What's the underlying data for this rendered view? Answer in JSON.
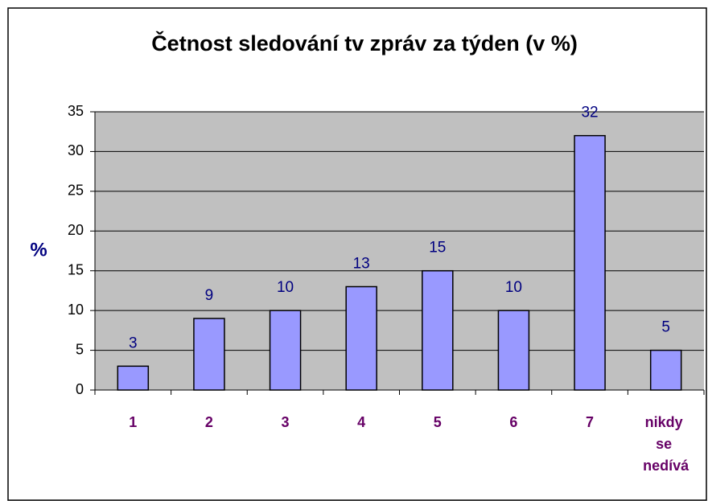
{
  "chart_data": {
    "type": "bar",
    "title": "Četnost sledování tv zpráv za týden (v %)",
    "y_label": "%",
    "categories": [
      "1",
      "2",
      "3",
      "4",
      "5",
      "6",
      "7",
      "nikdy se nedívá"
    ],
    "values": [
      3,
      9,
      10,
      13,
      15,
      10,
      32,
      5
    ],
    "color": "#9999ff",
    "ylim": [
      0,
      35
    ],
    "yticks": [
      0,
      5,
      10,
      15,
      20,
      25,
      30,
      35
    ],
    "grid": true
  }
}
